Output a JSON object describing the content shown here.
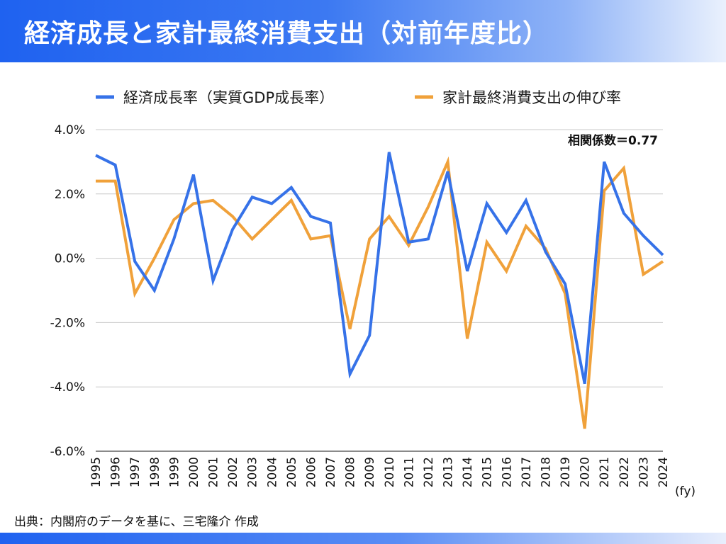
{
  "header": {
    "title": "経済成長と家計最終消費支出（対前年度比）"
  },
  "footer": {
    "source": "出典：内閣府のデータを基に、三宅隆介 作成"
  },
  "chart_data": {
    "type": "line",
    "categories": [
      "1995",
      "1996",
      "1997",
      "1998",
      "1999",
      "2000",
      "2001",
      "2002",
      "2003",
      "2004",
      "2005",
      "2006",
      "2007",
      "2008",
      "2009",
      "2010",
      "2011",
      "2012",
      "2013",
      "2014",
      "2015",
      "2016",
      "2017",
      "2018",
      "2019",
      "2020",
      "2021",
      "2022",
      "2023",
      "2024"
    ],
    "series": [
      {
        "name": "経済成長率（実質GDP成長率）",
        "color": "#3672e8",
        "values": [
          3.2,
          2.9,
          -0.1,
          -1.0,
          0.6,
          2.6,
          -0.7,
          0.9,
          1.9,
          1.7,
          2.2,
          1.3,
          1.1,
          -3.6,
          -2.4,
          3.3,
          0.5,
          0.6,
          2.7,
          -0.4,
          1.7,
          0.8,
          1.8,
          0.2,
          -0.8,
          -3.9,
          3.0,
          1.4,
          0.7,
          0.1
        ]
      },
      {
        "name": "家計最終消費支出の伸び率",
        "color": "#f0a13a",
        "values": [
          2.4,
          2.4,
          -1.1,
          0.0,
          1.2,
          1.7,
          1.8,
          1.3,
          0.6,
          1.2,
          1.8,
          0.6,
          0.7,
          -2.2,
          0.6,
          1.3,
          0.4,
          1.6,
          3.0,
          -2.5,
          0.5,
          -0.4,
          1.0,
          0.3,
          -1.1,
          -5.3,
          2.1,
          2.8,
          -0.5,
          -0.1
        ]
      }
    ],
    "y_ticks": [
      "4.0%",
      "2.0%",
      "0.0%",
      "-2.0%",
      "-4.0%",
      "-6.0%"
    ],
    "ylim": [
      -6,
      4
    ],
    "x_unit": "(fy)",
    "annotation": "相関係数＝0.77",
    "legend_position": "top",
    "grid": true
  }
}
